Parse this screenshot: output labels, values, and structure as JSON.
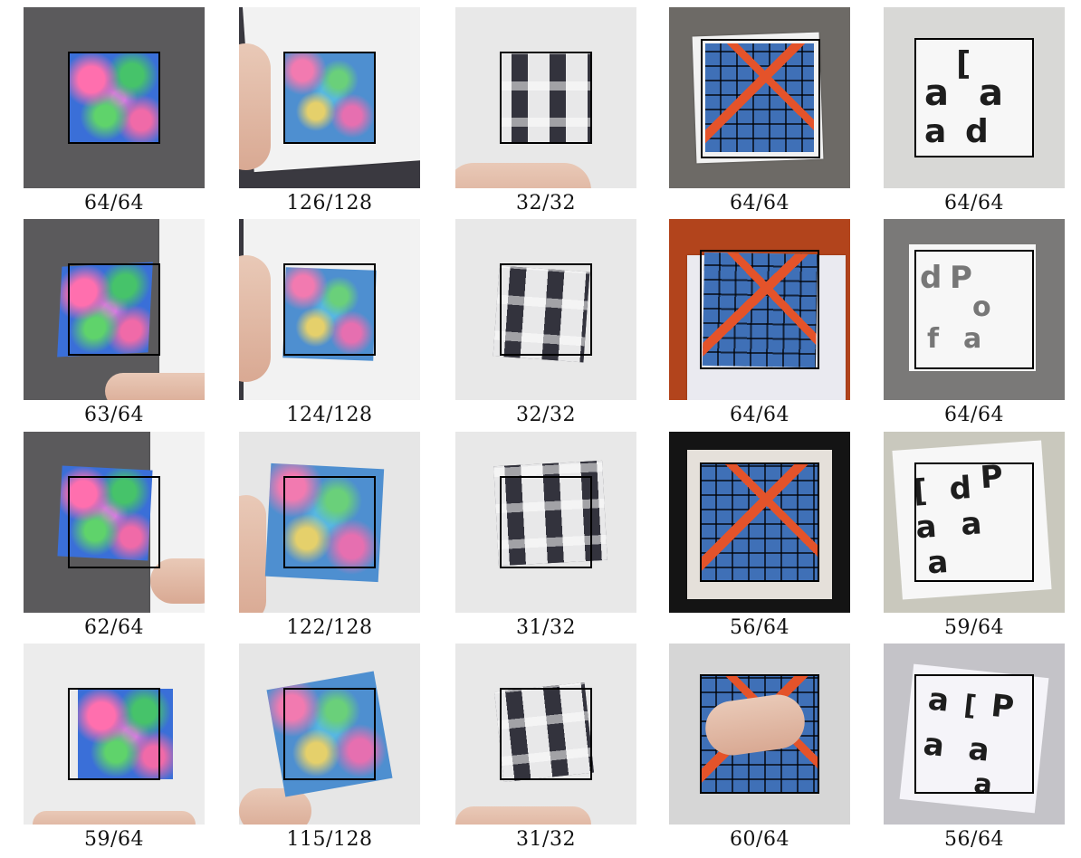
{
  "rows": [
    [
      "64/64",
      "126/128",
      "32/32",
      "64/64",
      "64/64"
    ],
    [
      "63/64",
      "124/128",
      "32/32",
      "64/64",
      "64/64"
    ],
    [
      "62/64",
      "122/128",
      "31/32",
      "56/64",
      "59/64"
    ],
    [
      "59/64",
      "115/128",
      "31/32",
      "60/64",
      "56/64"
    ]
  ],
  "photos": {
    "r0c0": "64/64",
    "r0c1": "126/128",
    "r0c2": "32/32",
    "r0c3": "64/64",
    "r0c4": "64/64",
    "r1c0": "63/64",
    "r1c1": "124/128",
    "r1c2": "32/32",
    "r1c3": "64/64",
    "r1c4": "64/64",
    "r2c0": "62/64",
    "r2c1": "122/128",
    "r2c2": "31/32",
    "r2c3": "56/64",
    "r2c4": "59/64",
    "r3c0": "59/64",
    "r3c1": "115/128",
    "r3c2": "31/32",
    "r3c3": "60/64",
    "r3c4": "56/64"
  },
  "colors": {
    "box": "#000000",
    "caption": "#111111"
  }
}
